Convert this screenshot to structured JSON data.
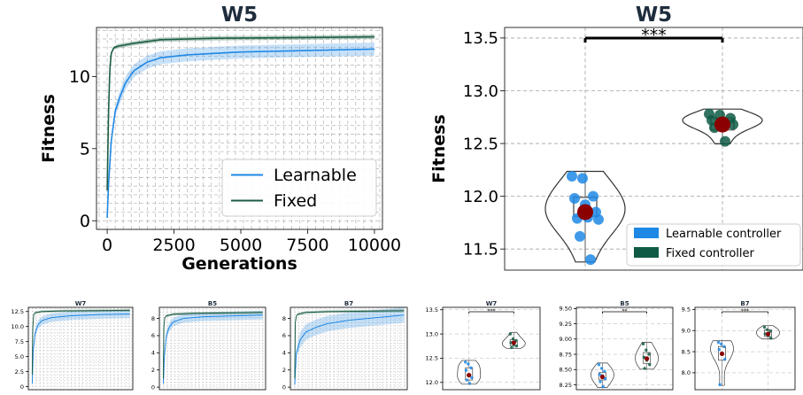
{
  "chart_data": [
    {
      "id": "main_line",
      "type": "line",
      "title": "W5",
      "xlabel": "Generations",
      "ylabel": "Fitness",
      "xlim": [
        -400,
        10300
      ],
      "ylim": [
        -0.6,
        13.4
      ],
      "xticks": [
        "0",
        "2500",
        "5000",
        "7500",
        "10000"
      ],
      "yticks": [
        "0",
        "5",
        "10"
      ],
      "grid": true,
      "legend_position": "bottom-right",
      "series": [
        {
          "name": "Learnable",
          "color": "#1e88e5",
          "x": [
            0,
            50,
            150,
            300,
            500,
            700,
            1000,
            1500,
            2000,
            3000,
            4000,
            5000,
            7500,
            10000
          ],
          "y": [
            0.2,
            2.5,
            5.5,
            7.6,
            8.7,
            9.6,
            10.4,
            11.0,
            11.3,
            11.5,
            11.6,
            11.7,
            11.8,
            11.9
          ],
          "band": 0.45
        },
        {
          "name": "Fixed",
          "color": "#1b5e42",
          "x": [
            0,
            50,
            100,
            150,
            250,
            400,
            700,
            1000,
            2000,
            4000,
            7500,
            10000
          ],
          "y": [
            2.1,
            7.5,
            10.5,
            11.6,
            12.0,
            12.1,
            12.2,
            12.3,
            12.55,
            12.65,
            12.7,
            12.75
          ],
          "band": 0.15
        }
      ]
    },
    {
      "id": "main_violin",
      "type": "scatter",
      "title": "W5",
      "ylabel": "Fitness",
      "ylim": [
        11.3,
        13.6
      ],
      "yticks": [
        "11.5",
        "12.0",
        "12.5",
        "13.0",
        "13.5"
      ],
      "grid": true,
      "legend_position": "bottom-right",
      "significance": "***",
      "series": [
        {
          "name": "Learnable controller",
          "color": "#1e88e5",
          "mean": 11.85,
          "box": [
            11.81,
            11.99
          ],
          "points": [
            12.19,
            12.17,
            12.0,
            11.98,
            11.92,
            11.85,
            11.79,
            11.8,
            11.78,
            11.62,
            11.4
          ]
        },
        {
          "name": "Fixed controller",
          "color": "#0f5a45",
          "mean": 12.68,
          "box": [
            12.63,
            12.74
          ],
          "points": [
            12.78,
            12.77,
            12.74,
            12.72,
            12.7,
            12.68,
            12.65,
            12.52
          ]
        }
      ]
    },
    {
      "id": "small_line_w7",
      "type": "line",
      "title": "W7",
      "xlim": [
        -400,
        10300
      ],
      "ylim": [
        -0.5,
        13.2
      ],
      "yticks": [
        "0",
        "2.5",
        "5.0",
        "7.5",
        "10.0",
        "12.5"
      ],
      "series": [
        {
          "name": "Learnable",
          "color": "#1e88e5",
          "x": [
            0,
            100,
            300,
            600,
            1000,
            2000,
            4000,
            7000,
            10000
          ],
          "y": [
            0.5,
            6.0,
            9.0,
            10.3,
            11.0,
            11.5,
            11.8,
            12.0,
            12.1
          ],
          "band": 0.7
        },
        {
          "name": "Fixed",
          "color": "#1b5e42",
          "x": [
            0,
            50,
            150,
            300,
            1000,
            3000,
            10000
          ],
          "y": [
            2.0,
            9.5,
            12.0,
            12.3,
            12.5,
            12.6,
            12.7
          ],
          "band": 0.2
        }
      ]
    },
    {
      "id": "small_line_b5",
      "type": "line",
      "title": "B5",
      "xlim": [
        -400,
        10300
      ],
      "ylim": [
        -0.3,
        9.3
      ],
      "yticks": [
        "0",
        "2",
        "4",
        "6",
        "8"
      ],
      "series": [
        {
          "name": "Learnable",
          "color": "#1e88e5",
          "x": [
            0,
            100,
            300,
            600,
            1000,
            2000,
            4000,
            7000,
            10000
          ],
          "y": [
            0.4,
            3.5,
            6.0,
            7.0,
            7.6,
            8.0,
            8.2,
            8.3,
            8.4
          ],
          "band": 0.5
        },
        {
          "name": "Fixed",
          "color": "#1b5e42",
          "x": [
            0,
            50,
            150,
            300,
            1000,
            3000,
            10000
          ],
          "y": [
            1.0,
            7.0,
            8.1,
            8.3,
            8.5,
            8.6,
            8.7
          ],
          "band": 0.15
        }
      ]
    },
    {
      "id": "small_line_b7",
      "type": "line",
      "title": "B7",
      "xlim": [
        -400,
        10300
      ],
      "ylim": [
        -0.3,
        9.3
      ],
      "yticks": [
        "0",
        "2",
        "4",
        "6",
        "8"
      ],
      "series": [
        {
          "name": "Learnable",
          "color": "#1e88e5",
          "x": [
            0,
            150,
            500,
            1000,
            2000,
            3000,
            5000,
            7500,
            10000
          ],
          "y": [
            0.3,
            4.0,
            5.5,
            6.4,
            7.0,
            7.4,
            7.8,
            8.1,
            8.4
          ],
          "band": 0.9
        },
        {
          "name": "Fixed",
          "color": "#1b5e42",
          "x": [
            0,
            50,
            150,
            300,
            1000,
            3000,
            10000
          ],
          "y": [
            1.0,
            7.5,
            8.3,
            8.5,
            8.7,
            8.8,
            8.9
          ],
          "band": 0.15
        }
      ]
    },
    {
      "id": "small_violin_w7",
      "type": "scatter",
      "title": "W7",
      "ylim": [
        11.85,
        13.55
      ],
      "yticks": [
        "12.0",
        "12.5",
        "13.0",
        "13.5"
      ],
      "significance": "***",
      "series": [
        {
          "name": "Learnable controller",
          "color": "#1e88e5",
          "mean": 12.15,
          "box": [
            12.05,
            12.3
          ],
          "points": [
            12.42,
            12.38,
            12.3,
            12.25,
            12.15,
            12.1,
            12.05,
            11.98
          ]
        },
        {
          "name": "Fixed controller",
          "color": "#0f5a45",
          "mean": 12.82,
          "box": [
            12.76,
            12.88
          ],
          "points": [
            13.0,
            12.9,
            12.86,
            12.82,
            12.78,
            12.75,
            12.72
          ]
        }
      ]
    },
    {
      "id": "small_violin_b5",
      "type": "scatter",
      "title": "B5",
      "ylim": [
        8.17,
        9.52
      ],
      "yticks": [
        "8.25",
        "8.50",
        "8.75",
        "9.00",
        "9.25",
        "9.50"
      ],
      "significance": "**",
      "series": [
        {
          "name": "Learnable controller",
          "color": "#1e88e5",
          "mean": 8.38,
          "box": [
            8.33,
            8.45
          ],
          "points": [
            8.58,
            8.52,
            8.47,
            8.42,
            8.4,
            8.35,
            8.3,
            8.22
          ]
        },
        {
          "name": "Fixed controller",
          "color": "#0f5a45",
          "mean": 8.68,
          "box": [
            8.6,
            8.78
          ],
          "points": [
            8.92,
            8.82,
            8.75,
            8.7,
            8.65,
            8.58,
            8.52
          ]
        }
      ]
    },
    {
      "id": "small_violin_b7",
      "type": "scatter",
      "title": "B7",
      "ylim": [
        7.6,
        9.55
      ],
      "yticks": [
        "8.0",
        "8.5",
        "9.0",
        "9.5"
      ],
      "significance": "***",
      "series": [
        {
          "name": "Learnable controller",
          "color": "#1e88e5",
          "mean": 8.45,
          "box": [
            8.3,
            8.62
          ],
          "points": [
            8.72,
            8.68,
            8.62,
            8.55,
            8.45,
            8.32,
            7.72
          ]
        },
        {
          "name": "Fixed controller",
          "color": "#0f5a45",
          "mean": 8.92,
          "box": [
            8.86,
            9.02
          ],
          "points": [
            9.08,
            9.02,
            8.98,
            8.92,
            8.88,
            8.82
          ]
        }
      ]
    }
  ]
}
